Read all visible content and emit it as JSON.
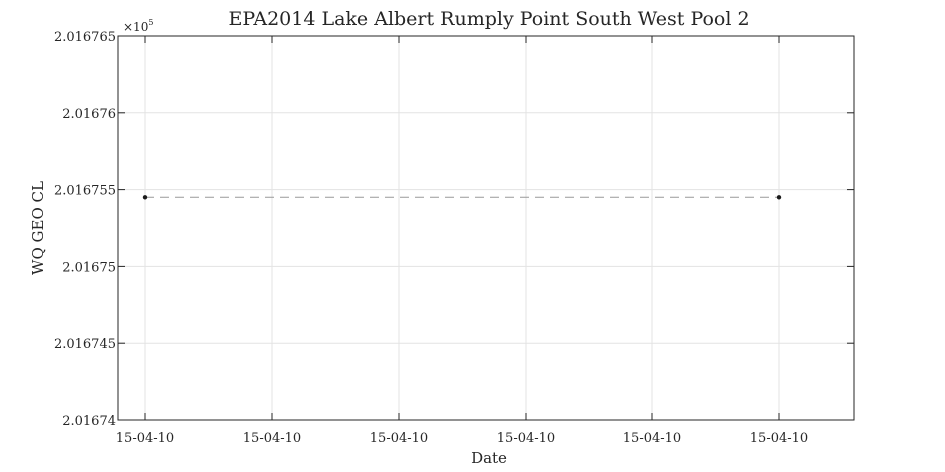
{
  "chart_data": {
    "type": "line",
    "title": "EPA2014 Lake Albert Rumply Point South West Pool 2",
    "xlabel": "Date",
    "ylabel": "WQ GEO CL",
    "x_tick_labels": [
      "15-04-10",
      "15-04-10",
      "15-04-10",
      "15-04-10",
      "15-04-10",
      "15-04-10"
    ],
    "y_tick_labels": [
      "2.01674",
      "2.016745",
      "2.01675",
      "2.016755",
      "2.01676",
      "2.016765"
    ],
    "y_exponent_base": "×10",
    "y_exponent_power": "5",
    "ylim": [
      2.01674,
      2.016765
    ],
    "y_ticks": [
      2.01674,
      2.016745,
      2.01675,
      2.016755,
      2.01676,
      2.016765
    ],
    "grid": true,
    "series": [
      {
        "x": [
          0.0,
          1.0
        ],
        "values": [
          2.0167545,
          2.0167545
        ],
        "line_style": "dashed",
        "line_color": "#999999",
        "marker_color": "#1a1a1a"
      }
    ],
    "x_range_note_free": true
  }
}
